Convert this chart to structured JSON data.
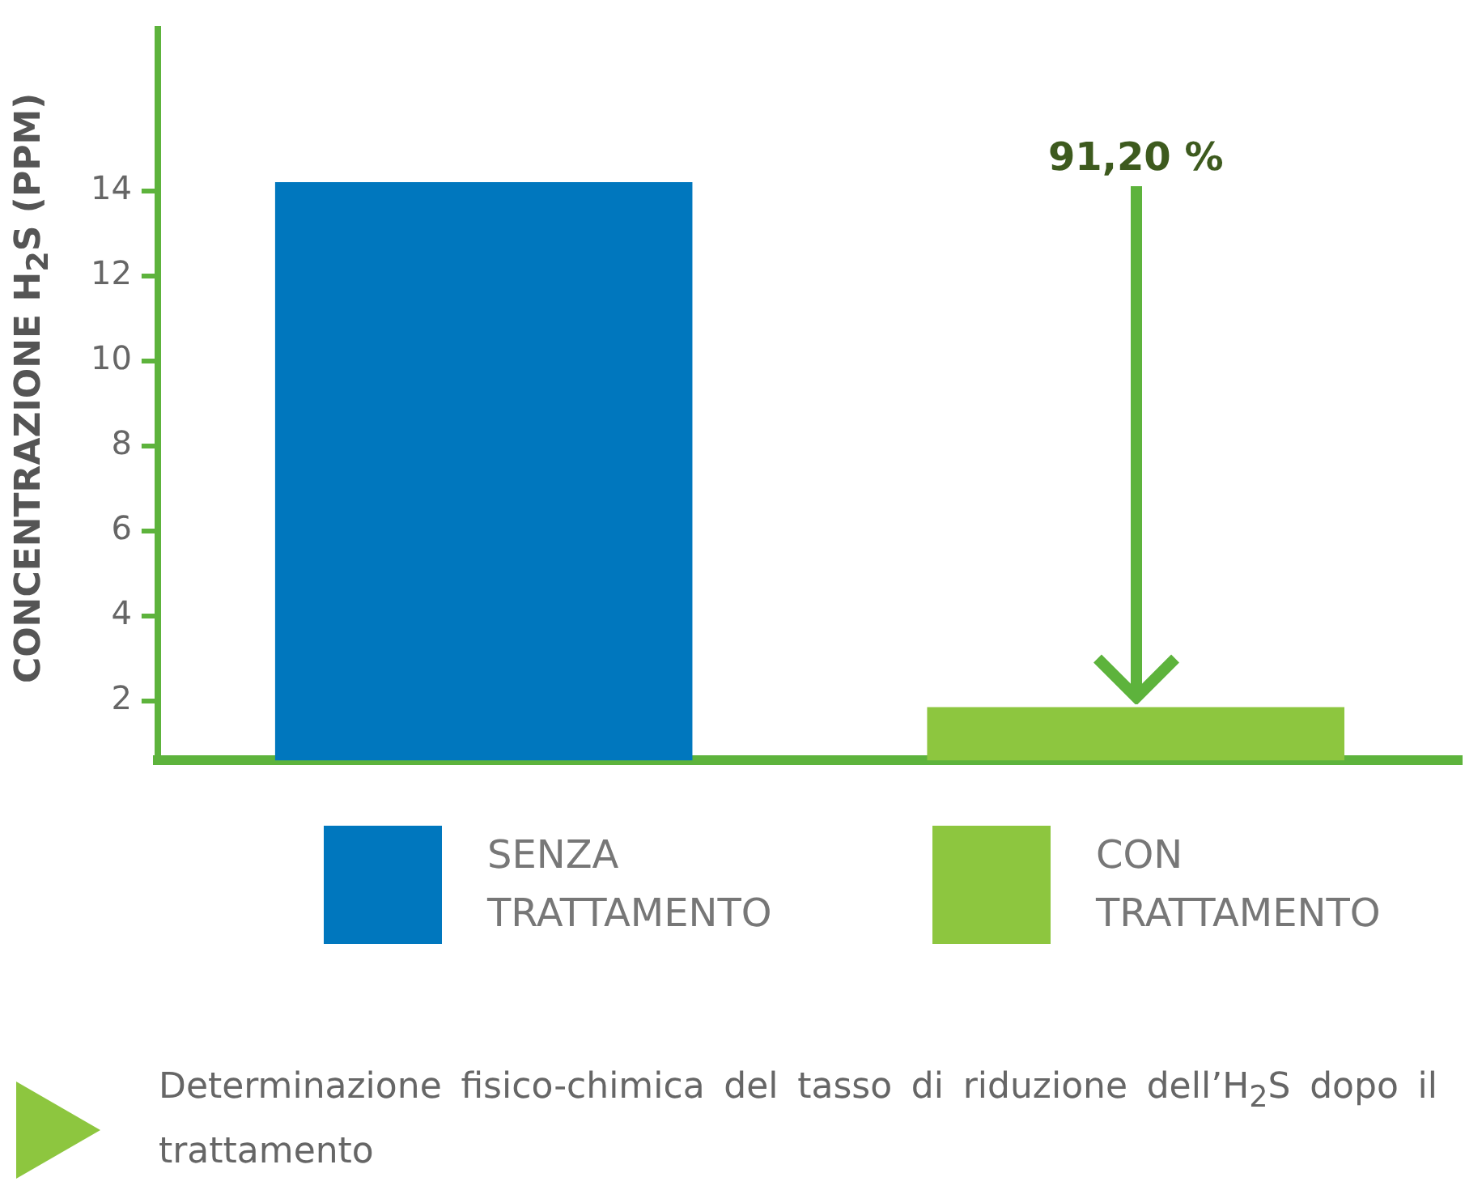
{
  "chart_data": {
    "type": "bar",
    "ylabel": "CONCENTRAZIONE H$_{2}$S (PPM)",
    "categories": [
      null,
      null
    ],
    "series": [
      {
        "name": "SENZA TRATTAMENTO",
        "color": "#0077be",
        "values": [
          14.2,
          null
        ]
      },
      {
        "name": "CON TRATTAMENTO",
        "color": "#8dc63f",
        "values": [
          null,
          1.85
        ]
      }
    ],
    "ylim": [
      0.6,
      17.8
    ],
    "yticks": [
      2,
      4,
      6,
      8,
      10,
      12,
      14
    ],
    "grid": false,
    "legend": "bottom",
    "annotations": [
      "91,20 %",
      "Determinazione fisico-chimica del tasso di riduzione dell’H$_{2}$S dopo il trattamento"
    ]
  }
}
